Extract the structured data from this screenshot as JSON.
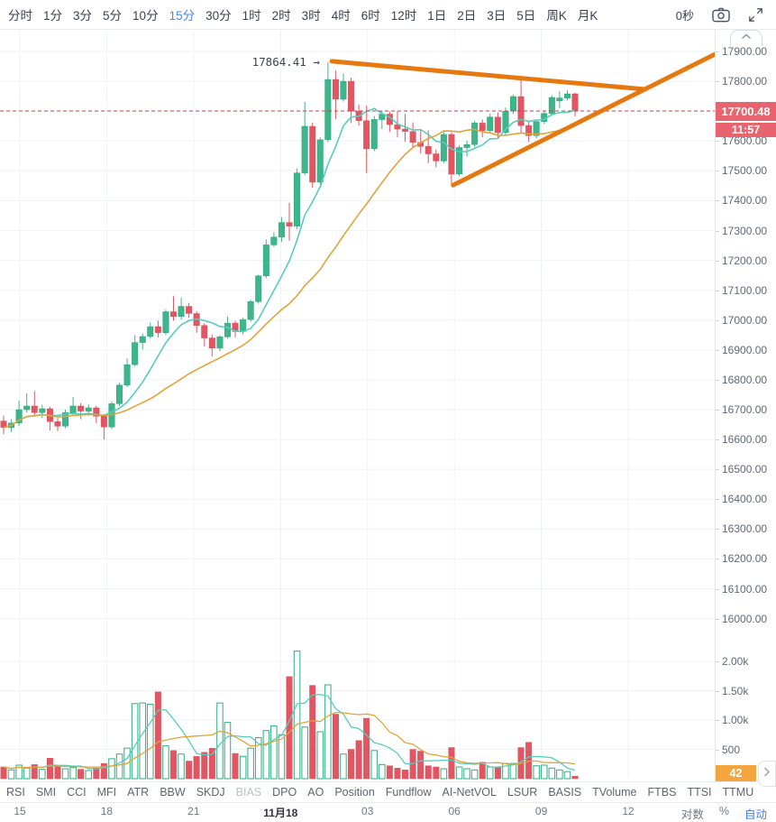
{
  "toolbar": {
    "timeframes": [
      "分时",
      "1分",
      "3分",
      "5分",
      "10分",
      "15分",
      "30分",
      "1时",
      "2时",
      "3时",
      "4时",
      "6时",
      "12时",
      "1日",
      "2日",
      "3日",
      "5日",
      "周K",
      "月K"
    ],
    "selected_timeframe": "15分",
    "countdown": "0秒"
  },
  "price_axis": {
    "tick_labels": [
      "17900.00",
      "17800.00",
      "17700.00",
      "17600.00",
      "17500.00",
      "17400.00",
      "17300.00",
      "17200.00",
      "17100.00",
      "17000.00",
      "16900.00",
      "16800.00",
      "16700.00",
      "16600.00",
      "16500.00",
      "16400.00",
      "16300.00",
      "16200.00",
      "16100.00",
      "16000.00"
    ]
  },
  "volume_axis": {
    "ticks": [
      {
        "label": "2.00k",
        "value": 2000
      },
      {
        "label": "1.50k",
        "value": 1500
      },
      {
        "label": "1.00k",
        "value": 1000
      },
      {
        "label": "500",
        "value": 500
      }
    ]
  },
  "badges": {
    "last_price": "17700.48",
    "last_time": "11:57",
    "current_volume": "42"
  },
  "time_axis": {
    "labels": [
      "15",
      "18",
      "21",
      "11月18",
      "03",
      "06",
      "09",
      "12"
    ],
    "bold_label": "11月18"
  },
  "axis_controls": {
    "log_label": "对数",
    "percent_label": "%",
    "auto_label": "自动"
  },
  "indicator_tabs": {
    "items": [
      "RSI",
      "SMI",
      "CCI",
      "MFI",
      "ATR",
      "BBW",
      "SKDJ",
      "BIAS",
      "DPO",
      "AO",
      "Position",
      "Fundflow",
      "AI-NetVOL",
      "LSUR",
      "BASIS",
      "TVolume",
      "FTBS",
      "TTSI",
      "TTMU"
    ],
    "muted": [
      "BIAS"
    ]
  },
  "colors": {
    "bull": "#3eb58a",
    "bull_border": "#2aa47b",
    "bear": "#e25663",
    "bear_border": "#d9505c",
    "ma_fast": "#57cdbd",
    "ma_slow": "#dfa53b",
    "trendline": "#e5790f",
    "last_price_line": "#bc4750",
    "grid": "#eff2f6",
    "badge_price_bg": "#e8656f",
    "badge_volume_bg": "#f5a53d",
    "annotation_text": "#3e434b"
  },
  "chart_data": {
    "type": "candlestick+volume",
    "timeframe": "15分",
    "price_ylim": [
      16000,
      17900
    ],
    "volume_ylim": [
      0,
      2200
    ],
    "grid": true,
    "peak_annotation": {
      "text": "17864.41 →",
      "index": 42,
      "price": 17864.41
    },
    "last_price": 17700.48,
    "last_time": "11:57",
    "current_volume": 42,
    "ma_periods": {
      "price_fast": 7,
      "price_slow": 20,
      "volume_fast": 5,
      "volume_slow": 12
    },
    "trendlines": [
      {
        "name": "descending-resistance",
        "from": {
          "index": 42.5,
          "price": 17867
        },
        "to": {
          "index": 83.1,
          "price": 17773
        }
      },
      {
        "name": "ascending-support",
        "from": {
          "index": 58.2,
          "price": 17452
        },
        "to": {
          "index": 92.3,
          "price": 17893
        }
      }
    ],
    "candles_ohlcv": [
      [
        16662,
        16680,
        16618,
        16640,
        200
      ],
      [
        16640,
        16668,
        16625,
        16655,
        150
      ],
      [
        16655,
        16730,
        16645,
        16700,
        230
      ],
      [
        16700,
        16755,
        16690,
        16712,
        180
      ],
      [
        16712,
        16762,
        16680,
        16690,
        240
      ],
      [
        16690,
        16716,
        16672,
        16703,
        160
      ],
      [
        16703,
        16710,
        16630,
        16660,
        350
      ],
      [
        16660,
        16672,
        16628,
        16645,
        210
      ],
      [
        16645,
        16700,
        16638,
        16690,
        170
      ],
      [
        16690,
        16742,
        16682,
        16712,
        190
      ],
      [
        16712,
        16722,
        16668,
        16695,
        160
      ],
      [
        16695,
        16718,
        16680,
        16706,
        140
      ],
      [
        16706,
        16712,
        16655,
        16678,
        180
      ],
      [
        16678,
        16685,
        16600,
        16642,
        260
      ],
      [
        16642,
        16728,
        16635,
        16720,
        340
      ],
      [
        16720,
        16790,
        16712,
        16782,
        420
      ],
      [
        16782,
        16872,
        16775,
        16851,
        520
      ],
      [
        16851,
        16950,
        16845,
        16925,
        1280
      ],
      [
        16925,
        16955,
        16902,
        16945,
        1290
      ],
      [
        16945,
        16992,
        16938,
        16978,
        1270
      ],
      [
        16978,
        16998,
        16942,
        16958,
        1480
      ],
      [
        16958,
        17035,
        16950,
        17028,
        560
      ],
      [
        17028,
        17080,
        16998,
        17012,
        480
      ],
      [
        17012,
        17075,
        17002,
        17046,
        420
      ],
      [
        17046,
        17058,
        17008,
        17022,
        300
      ],
      [
        17022,
        17030,
        16958,
        16982,
        380
      ],
      [
        16982,
        16990,
        16912,
        16940,
        450
      ],
      [
        16940,
        16952,
        16878,
        16906,
        520
      ],
      [
        16906,
        16950,
        16896,
        16944,
        1290
      ],
      [
        16944,
        17012,
        16938,
        16990,
        960
      ],
      [
        16990,
        16998,
        16942,
        16962,
        430
      ],
      [
        16962,
        17008,
        16952,
        17002,
        380
      ],
      [
        17002,
        17068,
        16995,
        17062,
        520
      ],
      [
        17062,
        17152,
        17055,
        17148,
        700
      ],
      [
        17148,
        17270,
        17140,
        17252,
        820
      ],
      [
        17252,
        17295,
        17245,
        17278,
        900
      ],
      [
        17278,
        17345,
        17262,
        17327,
        750
      ],
      [
        17327,
        17393,
        17266,
        17315,
        1740
      ],
      [
        17315,
        17508,
        17305,
        17493,
        2175
      ],
      [
        17493,
        17731,
        17485,
        17649,
        880
      ],
      [
        17649,
        17662,
        17444,
        17462,
        1590
      ],
      [
        17462,
        17612,
        17455,
        17604,
        800
      ],
      [
        17604,
        17864.41,
        17596,
        17806,
        1600
      ],
      [
        17806,
        17836,
        17673,
        17740,
        1100
      ],
      [
        17740,
        17826,
        17732,
        17800,
        420
      ],
      [
        17800,
        17812,
        17660,
        17700,
        500
      ],
      [
        17700,
        17722,
        17652,
        17668,
        650
      ],
      [
        17668,
        17719,
        17493,
        17574,
        1030
      ],
      [
        17574,
        17684,
        17566,
        17672,
        480
      ],
      [
        17672,
        17702,
        17640,
        17690,
        240
      ],
      [
        17690,
        17698,
        17630,
        17655,
        220
      ],
      [
        17655,
        17700,
        17612,
        17640,
        180
      ],
      [
        17640,
        17690,
        17598,
        17632,
        150
      ],
      [
        17632,
        17662,
        17578,
        17595,
        500
      ],
      [
        17595,
        17640,
        17558,
        17582,
        470
      ],
      [
        17582,
        17636,
        17526,
        17557,
        220
      ],
      [
        17557,
        17572,
        17512,
        17533,
        200
      ],
      [
        17533,
        17630,
        17526,
        17622,
        170
      ],
      [
        17622,
        17630,
        17457,
        17489,
        530
      ],
      [
        17489,
        17586,
        17482,
        17578,
        200
      ],
      [
        17578,
        17602,
        17548,
        17588,
        170
      ],
      [
        17588,
        17668,
        17580,
        17660,
        150
      ],
      [
        17660,
        17672,
        17612,
        17635,
        280
      ],
      [
        17635,
        17692,
        17628,
        17680,
        200
      ],
      [
        17680,
        17696,
        17610,
        17628,
        190
      ],
      [
        17628,
        17712,
        17620,
        17700,
        260
      ],
      [
        17700,
        17756,
        17690,
        17749,
        260
      ],
      [
        17749,
        17806,
        17626,
        17652,
        530
      ],
      [
        17652,
        17668,
        17598,
        17618,
        620
      ],
      [
        17618,
        17672,
        17608,
        17665,
        220
      ],
      [
        17665,
        17702,
        17656,
        17692,
        230
      ],
      [
        17692,
        17752,
        17684,
        17746,
        180
      ],
      [
        17734,
        17766,
        17710,
        17744,
        150
      ],
      [
        17744,
        17770,
        17736,
        17758,
        120
      ],
      [
        17758,
        17762,
        17682,
        17700.48,
        42
      ]
    ]
  }
}
